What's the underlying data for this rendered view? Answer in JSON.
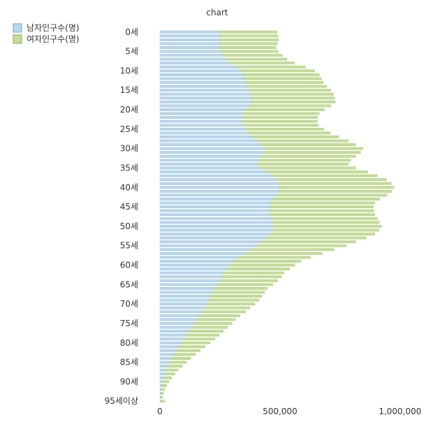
{
  "chart_data": {
    "type": "bar",
    "orientation": "horizontal",
    "stacked": true,
    "title": "chart",
    "xlabel": "",
    "ylabel": "",
    "xlim": [
      0,
      1000000
    ],
    "x_ticks": [
      0,
      500000,
      1000000
    ],
    "x_tick_labels": [
      "0",
      "500,000",
      "1,000,000"
    ],
    "grid": false,
    "legend_position": "top-left",
    "category_labels_shown": [
      "0세",
      "5세",
      "10세",
      "15세",
      "20세",
      "25세",
      "30세",
      "35세",
      "40세",
      "45세",
      "50세",
      "55세",
      "60세",
      "65세",
      "70세",
      "75세",
      "80세",
      "85세",
      "90세",
      "95세이상"
    ],
    "categories": [
      "0세",
      "1세",
      "2세",
      "3세",
      "4세",
      "5세",
      "6세",
      "7세",
      "8세",
      "9세",
      "10세",
      "11세",
      "12세",
      "13세",
      "14세",
      "15세",
      "16세",
      "17세",
      "18세",
      "19세",
      "20세",
      "21세",
      "22세",
      "23세",
      "24세",
      "25세",
      "26세",
      "27세",
      "28세",
      "29세",
      "30세",
      "31세",
      "32세",
      "33세",
      "34세",
      "35세",
      "36세",
      "37세",
      "38세",
      "39세",
      "40세",
      "41세",
      "42세",
      "43세",
      "44세",
      "45세",
      "46세",
      "47세",
      "48세",
      "49세",
      "50세",
      "51세",
      "52세",
      "53세",
      "54세",
      "55세",
      "56세",
      "57세",
      "58세",
      "59세",
      "60세",
      "61세",
      "62세",
      "63세",
      "64세",
      "65세",
      "66세",
      "67세",
      "68세",
      "69세",
      "70세",
      "71세",
      "72세",
      "73세",
      "74세",
      "75세",
      "76세",
      "77세",
      "78세",
      "79세",
      "80세",
      "81세",
      "82세",
      "83세",
      "84세",
      "85세",
      "86세",
      "87세",
      "88세",
      "89세",
      "90세",
      "91세",
      "92세",
      "93세",
      "94세",
      "95세이상"
    ],
    "series": [
      {
        "name": "남자인구수(명)",
        "color": "#b8d8ee",
        "values": [
          250000,
          252000,
          253000,
          251000,
          249000,
          252000,
          262000,
          272000,
          290000,
          315000,
          335000,
          345000,
          350000,
          355000,
          362000,
          372000,
          378000,
          380000,
          380000,
          370000,
          355000,
          345000,
          342000,
          342000,
          345000,
          355000,
          368000,
          385000,
          405000,
          420000,
          435000,
          430000,
          420000,
          410000,
          405000,
          420000,
          445000,
          465000,
          485000,
          495000,
          500000,
          495000,
          485000,
          470000,
          460000,
          458000,
          458000,
          460000,
          465000,
          468000,
          472000,
          468000,
          460000,
          440000,
          420000,
          400000,
          375000,
          350000,
          325000,
          305000,
          290000,
          278000,
          265000,
          258000,
          250000,
          238000,
          225000,
          218000,
          210000,
          205000,
          195000,
          185000,
          175000,
          162000,
          152000,
          142000,
          132000,
          122000,
          112000,
          102000,
          90000,
          80000,
          70000,
          60000,
          50000,
          42000,
          35000,
          28000,
          22000,
          17000,
          12000,
          9000,
          7000,
          5000,
          4000,
          6000
        ]
      },
      {
        "name": "여자인구수(명)",
        "color": "#c4dd98",
        "values": [
          238000,
          240000,
          240000,
          238000,
          234000,
          240000,
          248000,
          256000,
          270000,
          290000,
          310000,
          318000,
          322000,
          326000,
          332000,
          340000,
          345000,
          348000,
          350000,
          342000,
          330000,
          318000,
          314000,
          313000,
          315000,
          328000,
          342000,
          360000,
          380000,
          395000,
          410000,
          405000,
          395000,
          385000,
          380000,
          395000,
          420000,
          440000,
          458000,
          468000,
          475000,
          470000,
          460000,
          445000,
          435000,
          430000,
          432000,
          435000,
          440000,
          445000,
          450000,
          445000,
          435000,
          418000,
          395000,
          375000,
          350000,
          325000,
          302000,
          282000,
          272000,
          262000,
          252000,
          248000,
          240000,
          232000,
          222000,
          218000,
          214000,
          208000,
          200000,
          190000,
          182000,
          172000,
          163000,
          158000,
          150000,
          142000,
          135000,
          127000,
          118000,
          108000,
          98000,
          88000,
          78000,
          68000,
          58000,
          48000,
          40000,
          32000,
          25000,
          19000,
          14000,
          10000,
          7000,
          14000
        ]
      }
    ]
  }
}
